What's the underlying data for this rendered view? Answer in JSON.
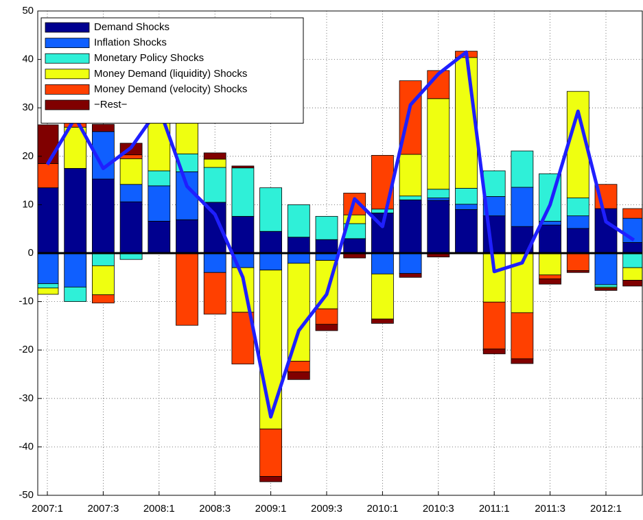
{
  "chart_data": {
    "type": "bar",
    "stacked": true,
    "grid": true,
    "legend": "upper left",
    "categories": [
      "2007:1",
      null,
      "2007:3",
      null,
      "2008:1",
      null,
      "2008:3",
      null,
      "2009:1",
      null,
      "2009:3",
      null,
      "2010:1",
      null,
      "2010:3",
      null,
      "2011:1",
      null,
      "2011:3",
      null,
      "2012:1",
      null
    ],
    "ylim": [
      -50,
      50
    ],
    "yticks": [
      -50,
      -40,
      -30,
      -20,
      -10,
      0,
      10,
      20,
      30,
      40,
      50
    ],
    "series": [
      {
        "name": "Demand Shocks",
        "color": "#00008f",
        "values": [
          13.5,
          17.5,
          15.3,
          10.6,
          6.6,
          6.9,
          10.5,
          7.6,
          4.5,
          3.3,
          2.8,
          3,
          8.3,
          11,
          10.9,
          9,
          7.7,
          5.5,
          5.8,
          5.1,
          9.2,
          2.2
        ]
      },
      {
        "name": "Inflation Shocks",
        "color": "#0f5fff",
        "values": [
          -6.3,
          -7,
          9.8,
          3.6,
          7.3,
          9.9,
          -4,
          -3,
          -3.5,
          -2.1,
          -1.5,
          0,
          -4.3,
          -4.2,
          0.5,
          1.1,
          4,
          8.1,
          0.8,
          2.6,
          -6.5,
          5
        ]
      },
      {
        "name": "Monetary Policy Shocks",
        "color": "#2ff0d8",
        "values": [
          -0.9,
          -3,
          -2.6,
          -1.3,
          3.1,
          3.7,
          7.2,
          10,
          9,
          6.7,
          4.8,
          3.1,
          0.8,
          0.8,
          1.8,
          3.3,
          5.3,
          7.5,
          9.8,
          3.7,
          -0.5,
          -3
        ]
      },
      {
        "name": "Money Demand (liquidity) Shocks",
        "color": "#efff10",
        "values": [
          -1.3,
          8.5,
          -6,
          5.3,
          12,
          7,
          1.7,
          -9.2,
          -32.8,
          -20.2,
          -10,
          1.8,
          -9.3,
          8.6,
          18.7,
          27,
          -10.1,
          -12.3,
          -4.5,
          22,
          -0.2,
          -2.6
        ]
      },
      {
        "name": "Money Demand (velocity) Shocks",
        "color": "#ff4000",
        "values": [
          5,
          1,
          -1.7,
          0.8,
          0,
          -14.9,
          -8.6,
          -10.7,
          -9.8,
          -2.2,
          -3.2,
          4.5,
          11.1,
          15.2,
          5.8,
          1.3,
          -9.7,
          -9.5,
          -0.8,
          -3.6,
          5,
          2
        ]
      },
      {
        "name": "−Rest−",
        "color": "#800000",
        "values": [
          8,
          0.5,
          1.5,
          2.4,
          0,
          0,
          1.3,
          0.4,
          -1.1,
          -1.6,
          -1.3,
          -1,
          -0.9,
          -0.8,
          -0.8,
          0,
          -1,
          -1,
          -1.1,
          -0.4,
          -0.5,
          -1.2
        ]
      },
      {
        "type": "line",
        "color": "#1f1fff",
        "values": [
          18.3,
          28,
          17.5,
          21.8,
          30,
          13.8,
          8,
          -5,
          -33.8,
          -16,
          -8.5,
          11.2,
          5.5,
          30.6,
          37,
          41.5,
          -3.8,
          -2,
          10,
          29.3,
          6.5,
          2.7
        ]
      }
    ]
  }
}
